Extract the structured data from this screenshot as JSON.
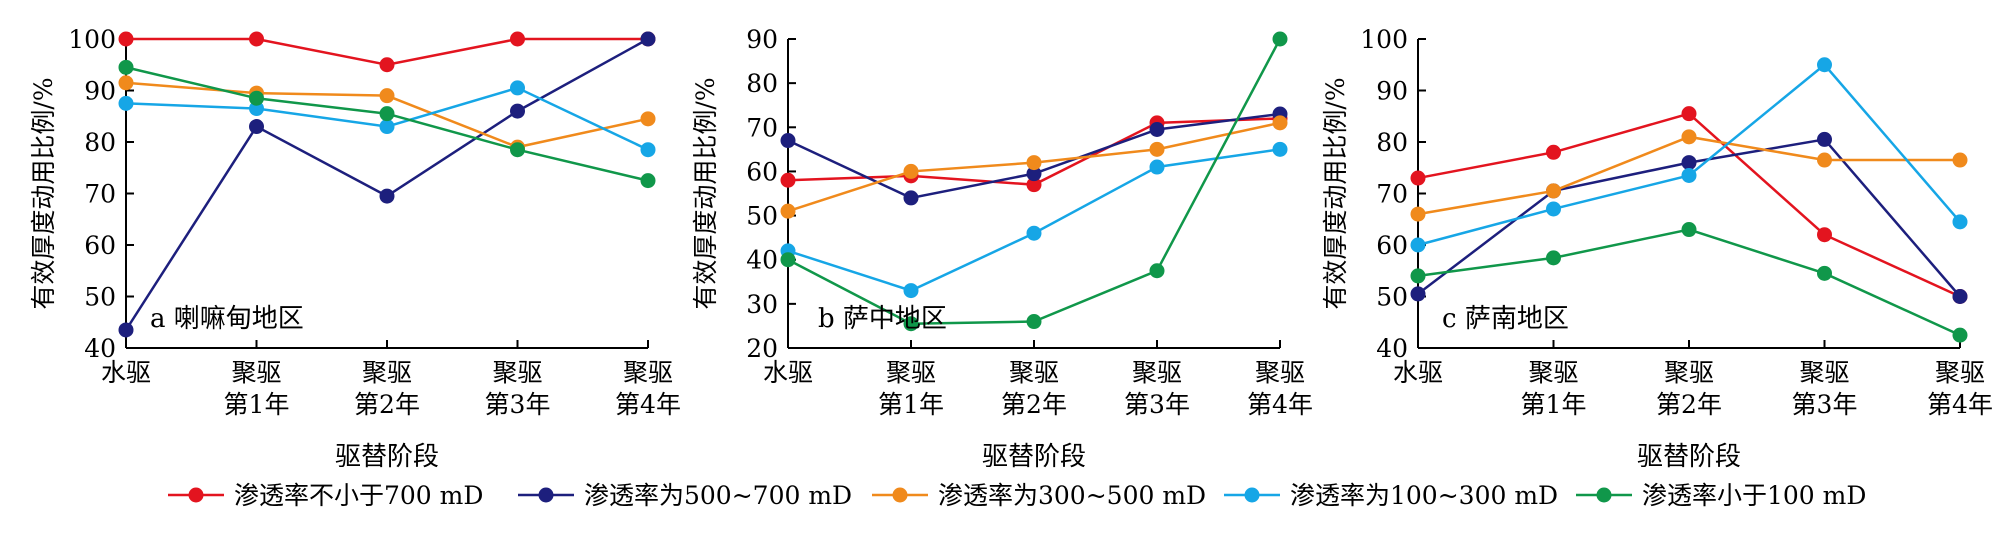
{
  "series_names": [
    "渗透率不小于700 mD",
    "渗透率为500~700 mD",
    "渗透率为300~500 mD",
    "渗透率为100~300 mD",
    "渗透率小于100 mD"
  ],
  "series_colors": [
    "#e3141f",
    "#1d1f7d",
    "#f08a1c",
    "#16a6e6",
    "#10974a"
  ],
  "chart_data": [
    {
      "type": "line",
      "annotation": "a 喇嘛甸地区",
      "ylabel": "有效厚度动用比例/%",
      "xlabel": "驱替阶段",
      "categories": [
        [
          "水驱"
        ],
        [
          "聚驱",
          "第1年"
        ],
        [
          "聚驱",
          "第2年"
        ],
        [
          "聚驱",
          "第3年"
        ],
        [
          "聚驱",
          "第4年"
        ]
      ],
      "ylim": [
        40,
        100
      ],
      "yticks": [
        40,
        50,
        60,
        70,
        80,
        90,
        100
      ],
      "series": [
        {
          "name": "渗透率不小于700 mD",
          "values": [
            100,
            100,
            95,
            100,
            100
          ]
        },
        {
          "name": "渗透率为500~700 mD",
          "values": [
            43.5,
            83,
            69.5,
            86,
            100
          ]
        },
        {
          "name": "渗透率为300~500 mD",
          "values": [
            91.5,
            89.5,
            89,
            79,
            84.5
          ]
        },
        {
          "name": "渗透率为100~300 mD",
          "values": [
            87.5,
            86.5,
            83,
            90.5,
            78.5
          ]
        },
        {
          "name": "渗透率小于100 mD",
          "values": [
            94.5,
            88.5,
            85.5,
            78.5,
            72.5
          ]
        }
      ]
    },
    {
      "type": "line",
      "annotation": "b 萨中地区",
      "ylabel": "有效厚度动用比例/%",
      "xlabel": "驱替阶段",
      "categories": [
        [
          "水驱"
        ],
        [
          "聚驱",
          "第1年"
        ],
        [
          "聚驱",
          "第2年"
        ],
        [
          "聚驱",
          "第3年"
        ],
        [
          "聚驱",
          "第4年"
        ]
      ],
      "ylim": [
        20,
        90
      ],
      "yticks": [
        20,
        30,
        40,
        50,
        60,
        70,
        80,
        90
      ],
      "series": [
        {
          "name": "渗透率不小于700 mD",
          "values": [
            58,
            59,
            57,
            71,
            72
          ]
        },
        {
          "name": "渗透率为500~700 mD",
          "values": [
            67,
            54,
            59.5,
            69.5,
            73
          ]
        },
        {
          "name": "渗透率为300~500 mD",
          "values": [
            51,
            60,
            62,
            65,
            71
          ]
        },
        {
          "name": "渗透率为100~300 mD",
          "values": [
            42,
            33,
            46,
            61,
            65
          ]
        },
        {
          "name": "渗透率小于100 mD",
          "values": [
            40,
            25.5,
            26,
            37.5,
            90
          ]
        }
      ]
    },
    {
      "type": "line",
      "annotation": "c 萨南地区",
      "ylabel": "有效厚度动用比例/%",
      "xlabel": "驱替阶段",
      "categories": [
        [
          "水驱"
        ],
        [
          "聚驱",
          "第1年"
        ],
        [
          "聚驱",
          "第2年"
        ],
        [
          "聚驱",
          "第3年"
        ],
        [
          "聚驱",
          "第4年"
        ]
      ],
      "ylim": [
        40,
        100
      ],
      "yticks": [
        40,
        50,
        60,
        70,
        80,
        90,
        100
      ],
      "series": [
        {
          "name": "渗透率不小于700 mD",
          "values": [
            73,
            78,
            85.5,
            62,
            50
          ]
        },
        {
          "name": "渗透率为500~700 mD",
          "values": [
            50.5,
            70.5,
            76,
            80.5,
            50
          ]
        },
        {
          "name": "渗透率为300~500 mD",
          "values": [
            66,
            70.5,
            81,
            76.5,
            76.5
          ]
        },
        {
          "name": "渗透率为100~300 mD",
          "values": [
            60,
            67,
            73.5,
            95,
            64.5
          ]
        },
        {
          "name": "渗透率小于100 mD",
          "values": [
            54,
            57.5,
            63,
            54.5,
            42.5
          ]
        }
      ]
    }
  ]
}
